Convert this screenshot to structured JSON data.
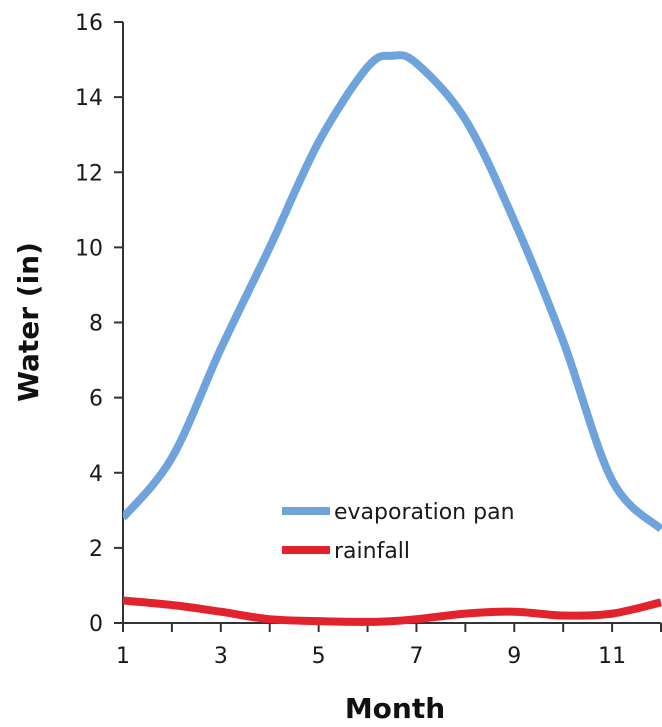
{
  "chart_data": {
    "type": "line",
    "title": "",
    "xlabel": "Month",
    "ylabel": "Water (in)",
    "xlim": [
      1,
      12
    ],
    "ylim": [
      0,
      16
    ],
    "x_ticks": [
      1,
      3,
      5,
      7,
      9,
      11
    ],
    "y_ticks": [
      0,
      2,
      4,
      6,
      8,
      10,
      12,
      14,
      16
    ],
    "grid": false,
    "legend_position": "lower-center",
    "x": [
      1,
      2,
      3,
      4,
      5,
      6,
      6.5,
      7,
      8,
      9,
      10,
      11,
      12
    ],
    "series": [
      {
        "name": "evaporation pan",
        "color": "#6fa3dc",
        "values": [
          2.8,
          4.4,
          7.3,
          10.0,
          12.8,
          14.8,
          15.1,
          14.9,
          13.4,
          10.7,
          7.5,
          3.8,
          2.5
        ]
      },
      {
        "name": "rainfall",
        "color": "#e2232e",
        "values": [
          0.6,
          0.48,
          0.3,
          0.1,
          0.05,
          0.03,
          0.05,
          0.1,
          0.25,
          0.3,
          0.2,
          0.25,
          0.55
        ]
      }
    ]
  }
}
